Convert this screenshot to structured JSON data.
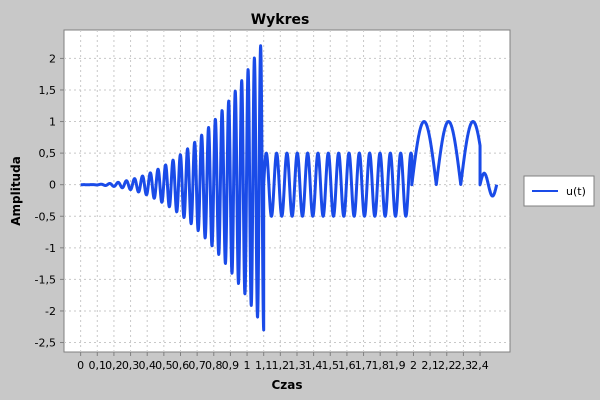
{
  "chart_data": {
    "type": "line",
    "title": "Wykres",
    "xlabel": "Czas",
    "ylabel": "Amplituda",
    "xlim": [
      -0.1,
      2.58
    ],
    "ylim": [
      -2.65,
      2.45
    ],
    "x_tick_labels": [
      "0",
      "0,1",
      "0,2",
      "0,3",
      "0,4",
      "0,5",
      "0,6",
      "0,7",
      "0,8",
      "0,9",
      "1",
      "1,1",
      "1,2",
      "1,3",
      "1,4",
      "1,5",
      "1,6",
      "1,7",
      "1,8",
      "1,9",
      "2",
      "2,1",
      "2,2",
      "2,3",
      "2,4"
    ],
    "x_ticks": [
      0,
      0.1,
      0.2,
      0.3,
      0.4,
      0.5,
      0.6,
      0.7,
      0.8,
      0.9,
      1.0,
      1.1,
      1.2,
      1.3,
      1.4,
      1.5,
      1.6,
      1.7,
      1.8,
      1.9,
      2.0,
      2.1,
      2.2,
      2.3,
      2.4
    ],
    "y_tick_labels": [
      "-2,5",
      "-2",
      "-1,5",
      "-1",
      "-0,5",
      "0",
      "0,5",
      "1",
      "1,5",
      "2"
    ],
    "y_ticks": [
      -2.5,
      -2,
      -1.5,
      -1,
      -0.5,
      0,
      0.5,
      1,
      1.5,
      2
    ],
    "grid": true,
    "legend_position": "right",
    "series": [
      {
        "name": "u(t)",
        "color": "#1a4be8",
        "segments": [
          {
            "x_start": 0.0,
            "x_end": 1.1,
            "shape": "chirp",
            "amplitude_start": 0.0,
            "amplitude_end": 2.3,
            "frequency_start": 18,
            "frequency_end": 27
          },
          {
            "x_start": 1.1,
            "x_end": 1.99,
            "shape": "sine",
            "amplitude_start": 0.5,
            "amplitude_end": 0.5,
            "frequency": 16.1
          },
          {
            "x_start": 1.99,
            "x_end": 2.4,
            "shape": "sine-rectified",
            "amplitude_start": 1.0,
            "amplitude_end": 1.0,
            "frequency": 6.8
          },
          {
            "x_start": 2.4,
            "x_end": 2.5,
            "shape": "sine",
            "amplitude_start": 0.18,
            "amplitude_end": 0.18,
            "frequency": 10
          }
        ]
      }
    ]
  }
}
